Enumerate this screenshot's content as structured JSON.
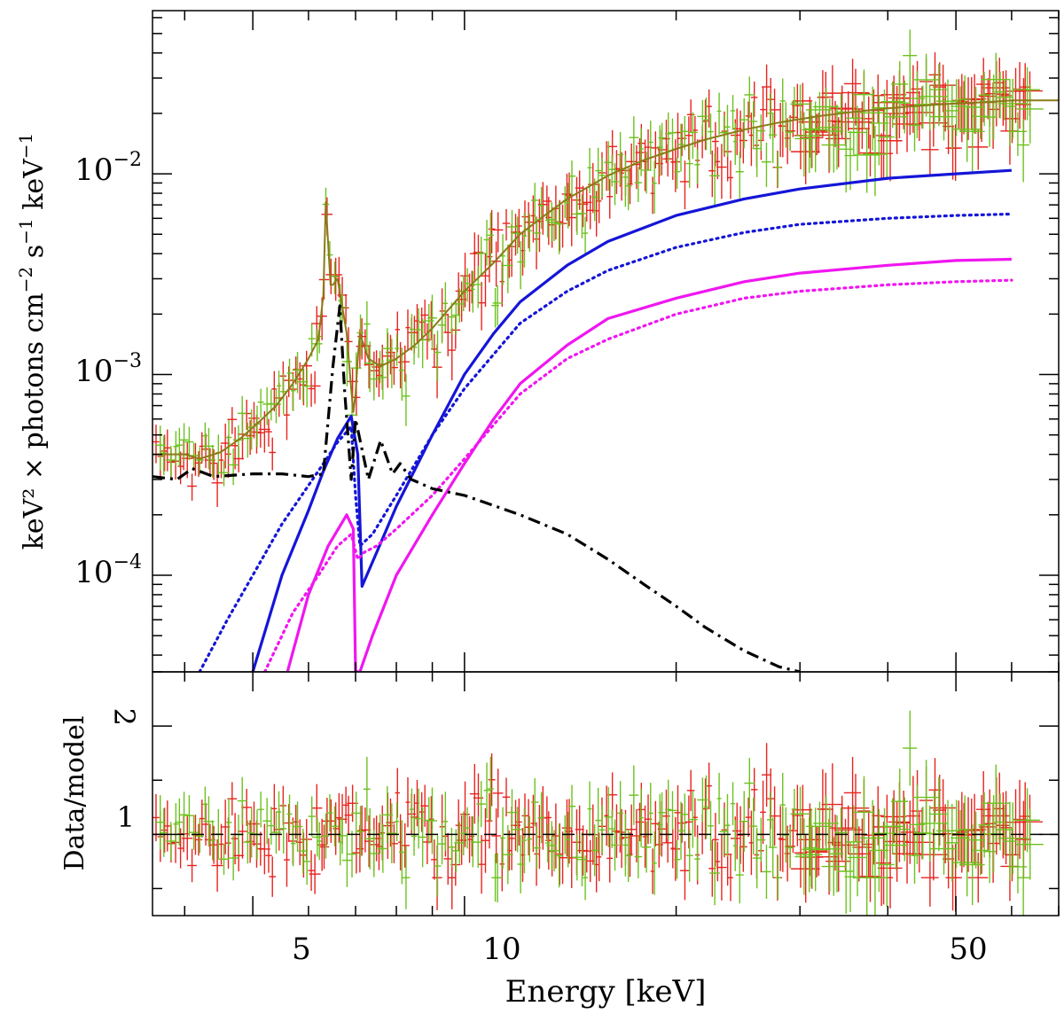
{
  "chart_data": [
    {
      "panel": "spectrum",
      "type": "line",
      "xscale": "log",
      "yscale": "log",
      "xlim": [
        3.6,
        70
      ],
      "ylim": [
        3.3e-05,
        0.065
      ],
      "ylabel_parts": {
        "pre": "keV² × photons cm",
        "exp1": "−2",
        "mid": " s",
        "exp2": "−1",
        "post": " keV",
        "exp3": "−1"
      },
      "ytick_labels": [
        {
          "value": 0.01,
          "base": "10",
          "exp": "−2"
        },
        {
          "value": 0.001,
          "base": "10",
          "exp": "−3"
        },
        {
          "value": 0.0001,
          "base": "10",
          "exp": "−4"
        }
      ],
      "colors": {
        "data_a": "#e8231e",
        "data_b": "#6cc21f",
        "model_total": "#8a7a18",
        "comp_blue": "#1515d8",
        "comp_magenta": "#f016f0",
        "comp_black": "#000000"
      },
      "series": [
        {
          "name": "total model",
          "style": "solid",
          "color": "model_total",
          "x": [
            3.6,
            3.8,
            4.0,
            4.2,
            4.5,
            4.8,
            5.1,
            5.4,
            5.7,
            6.0,
            6.2,
            6.3,
            6.35,
            6.4,
            6.45,
            6.5,
            6.6,
            6.7,
            6.8,
            6.9,
            6.95,
            7.0,
            7.05,
            7.1,
            7.3,
            7.6,
            8.0,
            8.5,
            9.0,
            10,
            11,
            12,
            13,
            14,
            15,
            16,
            18,
            20,
            22,
            25,
            28,
            32,
            36,
            40,
            45,
            50,
            56,
            60,
            70
          ],
          "y": [
            0.0004,
            0.0004,
            0.0004,
            0.00038,
            0.00041,
            0.00048,
            0.00058,
            0.0007,
            0.0009,
            0.0012,
            0.0015,
            0.0025,
            0.0072,
            0.0045,
            0.0028,
            0.0028,
            0.003,
            0.0022,
            0.0016,
            0.00085,
            0.00065,
            0.0008,
            0.0012,
            0.0016,
            0.0012,
            0.0011,
            0.0012,
            0.0014,
            0.0017,
            0.0026,
            0.0036,
            0.005,
            0.0062,
            0.0075,
            0.0086,
            0.0098,
            0.0117,
            0.0133,
            0.0148,
            0.0166,
            0.018,
            0.0194,
            0.0204,
            0.0212,
            0.0219,
            0.0224,
            0.0228,
            0.0232,
            0.0232
          ]
        },
        {
          "name": "blue component (solid)",
          "style": "solid",
          "color": "comp_blue",
          "x": [
            5.0,
            5.5,
            6.0,
            6.3,
            6.6,
            6.9,
            7.05,
            7.15,
            7.5,
            8,
            9,
            10,
            11,
            12,
            14,
            16,
            20,
            25,
            30,
            40,
            50,
            60
          ],
          "y": [
            3.3e-05,
            0.0001,
            0.00021,
            0.00033,
            0.00048,
            0.00062,
            0.0004,
            8.8e-05,
            0.00013,
            0.00022,
            0.0005,
            0.001,
            0.0016,
            0.0023,
            0.0035,
            0.0046,
            0.0062,
            0.0075,
            0.0084,
            0.0095,
            0.01,
            0.0104
          ]
        },
        {
          "name": "blue component (dotted)",
          "style": "dotted",
          "color": "comp_blue",
          "x": [
            4.2,
            4.6,
            5.0,
            5.5,
            6.0,
            6.3,
            6.6,
            6.9,
            7.0,
            7.1,
            7.4,
            8,
            9,
            10,
            12,
            14,
            16,
            20,
            25,
            30,
            40,
            50,
            60
          ],
          "y": [
            3.3e-05,
            6e-05,
            0.0001,
            0.00018,
            0.00028,
            0.00036,
            0.00046,
            0.00055,
            0.00025,
            0.00014,
            0.00016,
            0.00025,
            0.0005,
            0.00085,
            0.0018,
            0.0026,
            0.0033,
            0.0043,
            0.0051,
            0.0056,
            0.006,
            0.0062,
            0.0063
          ]
        },
        {
          "name": "magenta component (solid)",
          "style": "solid",
          "color": "comp_magenta",
          "x": [
            5.6,
            6.0,
            6.4,
            6.8,
            6.95,
            7.0,
            7.1,
            7.4,
            8,
            9,
            10,
            11,
            12,
            14,
            16,
            20,
            25,
            30,
            40,
            50,
            60
          ],
          "y": [
            3.3e-05,
            8e-05,
            0.00014,
            0.0002,
            0.00017,
            3.3e-05,
            3.3e-05,
            5e-05,
            0.0001,
            0.0002,
            0.00036,
            0.0006,
            0.0009,
            0.0014,
            0.0019,
            0.0024,
            0.0029,
            0.0032,
            0.0035,
            0.0037,
            0.00375
          ]
        },
        {
          "name": "magenta component (dotted)",
          "style": "dotted",
          "color": "comp_magenta",
          "x": [
            5.2,
            5.7,
            6.2,
            6.6,
            6.9,
            7.05,
            7.2,
            7.5,
            8,
            9,
            10,
            12,
            14,
            16,
            20,
            25,
            30,
            40,
            50,
            60
          ],
          "y": [
            3.3e-05,
            6.5e-05,
            0.0001,
            0.00014,
            0.00016,
            0.00012,
            0.00013,
            0.00014,
            0.00017,
            0.00025,
            0.00038,
            0.0008,
            0.0012,
            0.0015,
            0.002,
            0.0024,
            0.0026,
            0.0028,
            0.0029,
            0.00295
          ]
        },
        {
          "name": "black component (dash-dot)",
          "style": "dashdot",
          "color": "comp_black",
          "x": [
            3.6,
            3.9,
            4.1,
            4.4,
            5.0,
            5.5,
            6.0,
            6.3,
            6.5,
            6.65,
            6.75,
            6.9,
            7.0,
            7.3,
            7.6,
            7.9,
            8.1,
            8.4,
            8.6,
            9,
            10,
            12,
            14,
            16,
            18,
            20,
            22,
            25,
            28,
            30
          ],
          "y": [
            0.00031,
            0.0003,
            0.00034,
            0.00031,
            0.00032,
            0.00032,
            0.00031,
            0.00032,
            0.0011,
            0.0022,
            0.00085,
            0.0003,
            0.0006,
            0.0003,
            0.00047,
            0.00032,
            0.00036,
            0.0003,
            0.00029,
            0.00027,
            0.00025,
            0.0002,
            0.00016,
            0.00012,
            9e-05,
            7e-05,
            5.5e-05,
            4.2e-05,
            3.5e-05,
            3.3e-05
          ]
        }
      ]
    },
    {
      "panel": "residuals",
      "type": "scatter",
      "xscale": "log",
      "yscale": "linear",
      "xlim": [
        3.6,
        70
      ],
      "ylim": [
        0.25,
        2.5
      ],
      "ylabel": "Data/model",
      "xlabel": "Energy [keV]",
      "reference_line": 1,
      "ytick_labels": [
        {
          "value": 1,
          "label": "1"
        },
        {
          "value": 2,
          "label": "2"
        }
      ],
      "xtick_labels": [
        {
          "value": 5,
          "label": "5"
        },
        {
          "value": 10,
          "label": "10"
        },
        {
          "value": 50,
          "label": "50"
        }
      ]
    }
  ]
}
